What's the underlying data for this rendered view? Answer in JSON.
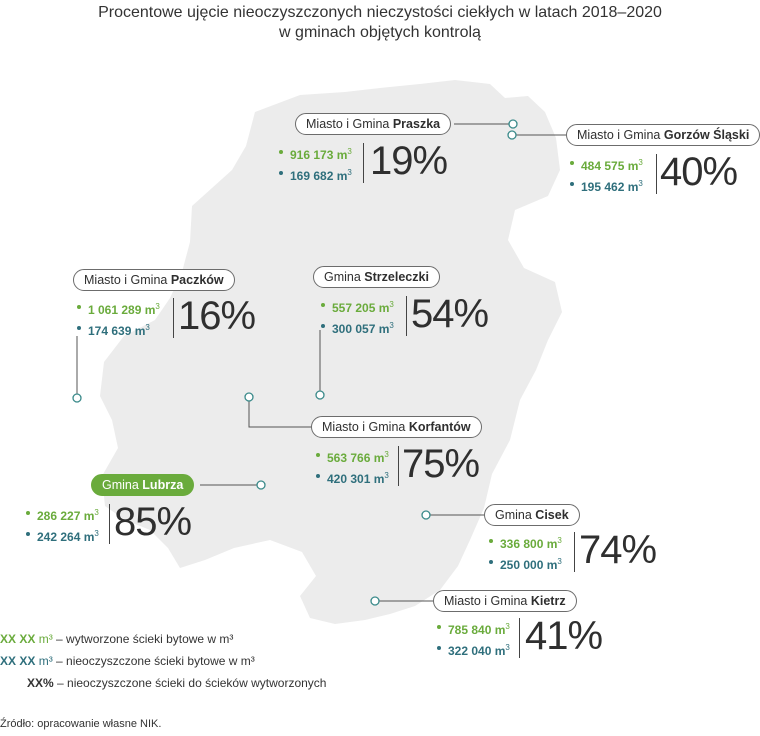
{
  "title": {
    "line1": "Procentowe ujęcie nieoczyszczonych nieczystości ciekłych w latach 2018–2020",
    "line2": "w gminach objętych kontrolą"
  },
  "colors": {
    "produced": "#6aab3c",
    "untreated": "#2f6f7c",
    "map_fill": "#ececec",
    "highlight": "#6aab3c"
  },
  "unit": "m",
  "unit_sup": "3",
  "gminas": [
    {
      "prefix": "Miasto i Gmina ",
      "name": "Praszka",
      "produced": "916 173",
      "untreated": "169 682",
      "percent": "19%",
      "highlighted": false
    },
    {
      "prefix": "Miasto i Gmina ",
      "name": "Gorzów Śląski",
      "produced": "484 575",
      "untreated": "195 462",
      "percent": "40%",
      "highlighted": false
    },
    {
      "prefix": "Miasto i Gmina ",
      "name": "Paczków",
      "produced": "1 061 289",
      "untreated": "174 639",
      "percent": "16%",
      "highlighted": false
    },
    {
      "prefix": "Gmina ",
      "name": "Strzeleczki",
      "produced": "557 205",
      "untreated": "300 057",
      "percent": "54%",
      "highlighted": false
    },
    {
      "prefix": "Miasto i Gmina ",
      "name": "Korfantów",
      "produced": "563 766",
      "untreated": "420 301",
      "percent": "75%",
      "highlighted": false
    },
    {
      "prefix": "Gmina ",
      "name": "Lubrza",
      "produced": "286 227",
      "untreated": "242 264",
      "percent": "85%",
      "highlighted": true
    },
    {
      "prefix": "Gmina ",
      "name": "Cisek",
      "produced": "336 800",
      "untreated": "250 000",
      "percent": "74%",
      "highlighted": false
    },
    {
      "prefix": "Miasto i Gmina ",
      "name": "Kietrz",
      "produced": "785 840",
      "untreated": "322 040",
      "percent": "41%",
      "highlighted": false
    }
  ],
  "legend": {
    "produced_key": "XX XX",
    "produced_unit": "m³",
    "produced_text": " – wytworzone ścieki bytowe w m³",
    "untreated_key": "XX XX",
    "untreated_unit": "m³",
    "untreated_text": " – nieoczyszczone ścieki bytowe w m³",
    "percent_key": "XX%",
    "percent_text": " – nieoczyszczone ścieki do ścieków wytworzonych"
  },
  "source": "Źródło: opracowanie własne NIK."
}
